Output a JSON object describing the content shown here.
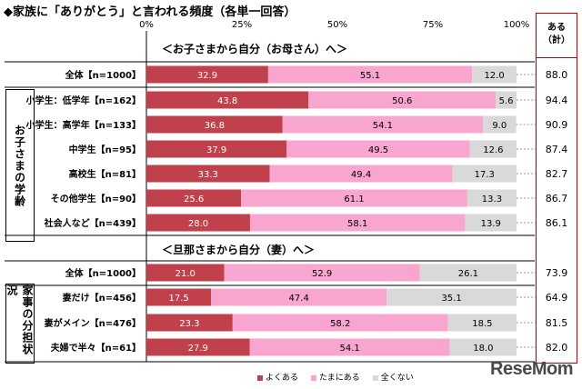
{
  "title": "◆家族に「ありがとう」と言われる頻度（各単一回答）",
  "total_header": {
    "line1": "ある",
    "line2": "（計）"
  },
  "section1": "＜お子さまから自分（お母さん）へ＞",
  "section2": "＜旦那さまから自分（妻）へ＞",
  "group1": "お子さまの学齢",
  "group2": "家事の分担状況",
  "chart_data": {
    "type": "stacked-bar-horizontal",
    "title": "◆家族に「ありがとう」と言われる頻度（各単一回答）",
    "xlim": [
      0,
      100
    ],
    "ticks": [
      "0%",
      "25%",
      "50%",
      "75%",
      "100%"
    ],
    "series_names": [
      "よくある",
      "たまにある",
      "全くない"
    ],
    "colors": [
      "#c0404b",
      "#f8a5cf",
      "#d9d9d9"
    ],
    "rows": [
      {
        "label": "全体【n=1000】",
        "values": [
          32.9,
          55.1,
          12.0
        ],
        "total": "88.0"
      },
      {
        "label": "小学生：低学年【n=162】",
        "values": [
          43.8,
          50.6,
          5.6
        ],
        "total": "94.4"
      },
      {
        "label": "小学生：高学年【n=133】",
        "values": [
          36.8,
          54.1,
          9.0
        ],
        "total": "90.9"
      },
      {
        "label": "中学生【n=95】",
        "values": [
          37.9,
          49.5,
          12.6
        ],
        "total": "87.4"
      },
      {
        "label": "高校生【n=81】",
        "values": [
          33.3,
          49.4,
          17.3
        ],
        "total": "82.7"
      },
      {
        "label": "その他学生【n=90】",
        "values": [
          25.6,
          61.1,
          13.3
        ],
        "total": "86.7"
      },
      {
        "label": "社会人など【n=439】",
        "values": [
          28.0,
          58.1,
          13.9
        ],
        "total": "86.1"
      },
      {
        "label": "全体【n=1000】",
        "values": [
          21.0,
          52.9,
          26.1
        ],
        "total": "73.9"
      },
      {
        "label": "妻だけ【n=456】",
        "values": [
          17.5,
          47.4,
          35.1
        ],
        "total": "64.9"
      },
      {
        "label": "妻がメイン【n=476】",
        "values": [
          23.3,
          58.2,
          18.5
        ],
        "total": "81.5"
      },
      {
        "label": "夫婦で半々【n=61】",
        "values": [
          27.9,
          54.1,
          18.0
        ],
        "total": "82.0"
      }
    ]
  },
  "logo": "ReseMom"
}
